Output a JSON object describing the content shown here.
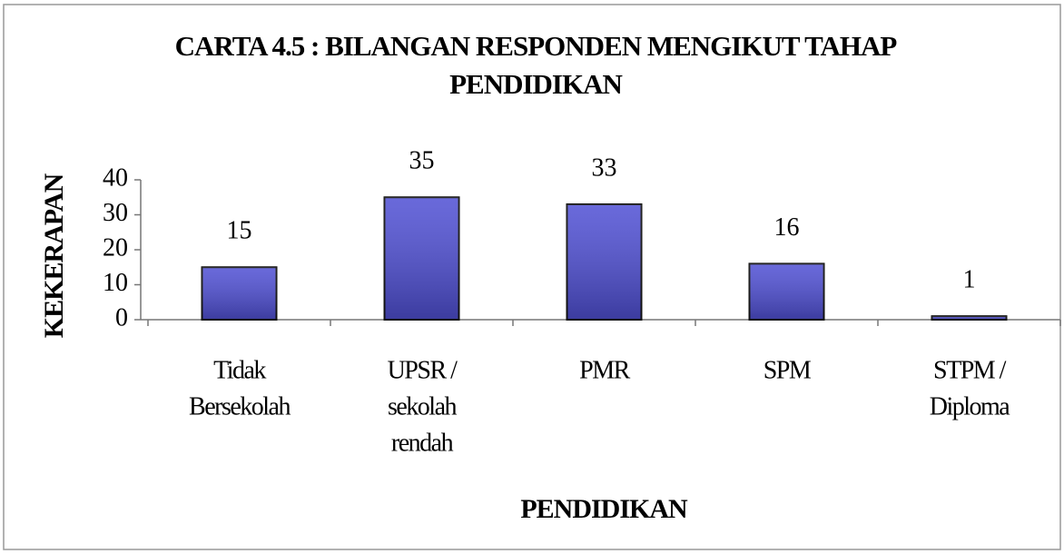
{
  "chart_data": {
    "type": "bar",
    "title": "CARTA 4.5 : BILANGAN RESPONDEN MENGIKUT TAHAP PENDIDIKAN",
    "y_label": "KEKERAPAN",
    "x_label": "PENDIDIKAN",
    "categories": [
      [
        "Tidak",
        "Bersekolah"
      ],
      [
        "UPSR /",
        "sekolah",
        "rendah"
      ],
      [
        "PMR"
      ],
      [
        "SPM"
      ],
      [
        "STPM /",
        "Diploma"
      ]
    ],
    "values": [
      15,
      35,
      33,
      16,
      1
    ],
    "color": "#4f4fd4",
    "ylim": [
      0,
      40
    ],
    "yticks": [
      0,
      10,
      20,
      30,
      40
    ],
    "grid": false
  }
}
